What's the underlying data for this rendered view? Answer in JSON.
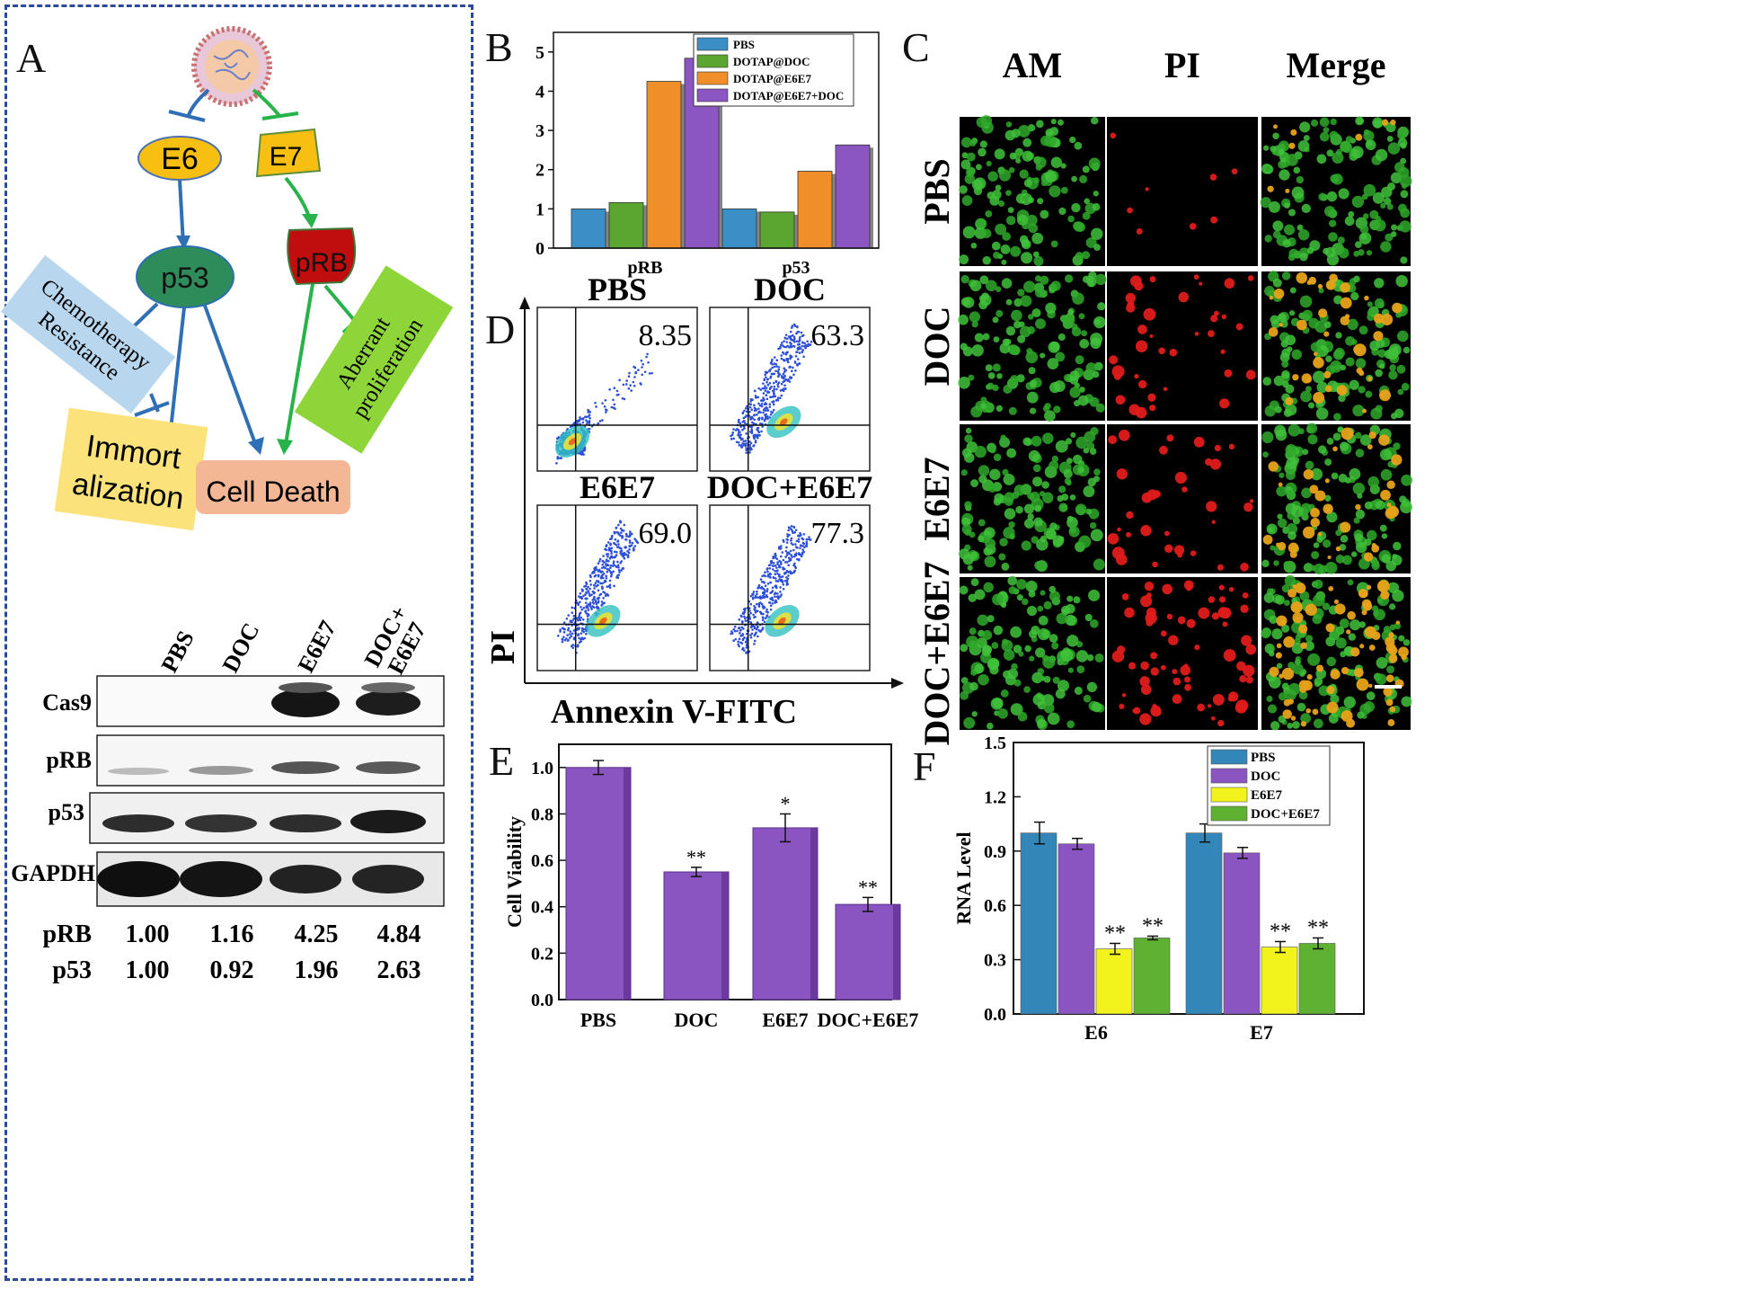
{
  "panels": {
    "a": "A",
    "b": "B",
    "c": "C",
    "d": "D",
    "e": "E",
    "f": "F"
  },
  "diagram": {
    "e6": "E6",
    "e7": "E7",
    "p53": "p53",
    "prb": "pRB",
    "chemo_line1": "Chemotherapy",
    "chemo_line2": "Resistance",
    "aberrant_line1": "Aberrant",
    "aberrant_line2": "proliferation",
    "immort_line1": "Immort",
    "immort_line2": "alization",
    "cell_death": "Cell Death"
  },
  "western": {
    "lanes": [
      "PBS",
      "DOC",
      "E6E7",
      "DOC+",
      "E6E7"
    ],
    "rows": [
      "Cas9",
      "pRB",
      "p53",
      "GAPDH"
    ],
    "quant": [
      {
        "label": "pRB",
        "values": [
          "1.00",
          "1.16",
          "4.25",
          "4.84"
        ]
      },
      {
        "label": "p53",
        "values": [
          "1.00",
          "0.92",
          "1.96",
          "2.63"
        ]
      }
    ]
  },
  "panel_c": {
    "columns": [
      "AM",
      "PI",
      "Merge"
    ],
    "rows": [
      "PBS",
      "DOC",
      "E6E7",
      "DOC+E6E7"
    ]
  },
  "panel_d": {
    "plots": [
      {
        "title": "PBS",
        "value": "8.35"
      },
      {
        "title": "DOC",
        "value": "63.3"
      },
      {
        "title": "E6E7",
        "value": "69.0"
      },
      {
        "title": "DOC+E6E7",
        "value": "77.3"
      }
    ],
    "ylabel": "PI",
    "xlabel": "Annexin V-FITC"
  },
  "colors": {
    "pbs": "#3b8fc6",
    "doc": "#5ba631",
    "e6e7": "#f08e2a",
    "combo": "#8b55c2",
    "purple": "#8a55c0",
    "yellow": "#f2f21c",
    "green": "#5fb132",
    "blue": "#3386b8",
    "frame": "#2b4a9a"
  },
  "chart_data": [
    {
      "id": "B",
      "type": "bar",
      "categories": [
        "pRB",
        "p53"
      ],
      "series": [
        {
          "name": "PBS",
          "values": [
            1.0,
            1.0
          ]
        },
        {
          "name": "DOTAP@DOC",
          "values": [
            1.16,
            0.92
          ]
        },
        {
          "name": "DOTAP@E6E7",
          "values": [
            4.25,
            1.96
          ]
        },
        {
          "name": "DOTAP@E6E7+DOC",
          "values": [
            4.84,
            2.63
          ]
        }
      ],
      "yticks": [
        "0",
        "1",
        "2",
        "3",
        "4",
        "5"
      ],
      "ylim": [
        0,
        5.5
      ],
      "legend": "top-right"
    },
    {
      "id": "E",
      "type": "bar",
      "categories": [
        "PBS",
        "DOC",
        "E6E7",
        "DOC+E6E7"
      ],
      "values": [
        1.0,
        0.55,
        0.74,
        0.41
      ],
      "errors": [
        0.03,
        0.02,
        0.06,
        0.03
      ],
      "significance": [
        "",
        "**",
        "*",
        "**"
      ],
      "ylabel": "Cell Viability",
      "yticks": [
        "0.0",
        "0.2",
        "0.4",
        "0.6",
        "0.8",
        "1.0"
      ],
      "ylim": [
        0,
        1.1
      ]
    },
    {
      "id": "F",
      "type": "bar",
      "categories": [
        "E6",
        "E7"
      ],
      "series": [
        {
          "name": "PBS",
          "values": [
            1.0,
            1.0
          ],
          "errors": [
            0.06,
            0.05
          ]
        },
        {
          "name": "DOC",
          "values": [
            0.94,
            0.89
          ],
          "errors": [
            0.03,
            0.03
          ]
        },
        {
          "name": "E6E7",
          "values": [
            0.36,
            0.37
          ],
          "errors": [
            0.03,
            0.03
          ]
        },
        {
          "name": "DOC+E6E7",
          "values": [
            0.42,
            0.39
          ],
          "errors": [
            0.01,
            0.03
          ]
        }
      ],
      "significance": [
        [
          "",
          "",
          "**",
          "**"
        ],
        [
          "",
          "",
          "**",
          "**"
        ]
      ],
      "ylabel": "RNA Level",
      "yticks": [
        "0.0",
        "0.3",
        "0.6",
        "0.9",
        "1.2",
        "1.5"
      ],
      "ylim": [
        0,
        1.5
      ],
      "legend": "top-right"
    }
  ]
}
